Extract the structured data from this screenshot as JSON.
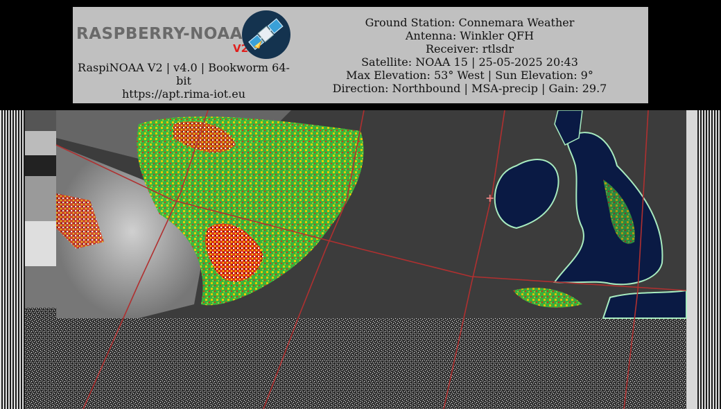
{
  "header": {
    "logo_text": "RASPBERRY-NOAA",
    "logo_version": "V2",
    "app_line_1": "RaspiNOAA V2 | v4.0 | Bookworm 64-",
    "app_line_2": "bit",
    "url": "https://apt.rima-iot.eu"
  },
  "pass_info": {
    "ground_station": "Ground Station: Connemara Weather",
    "antenna": "Antenna: Winkler QFH",
    "receiver": "Receiver: rtlsdr",
    "satellite": "Satellite: NOAA 15 | 25-05-2025 20:43",
    "elevation": "Max Elevation: 53° West | Sun Elevation: 9°",
    "direction": "Direction: Northbound | MSA-precip | Gain: 29.7"
  },
  "colors": {
    "banner_bg": "#c0c0c0",
    "ocean": "#0a1a44",
    "coastline": "#a8ecc0",
    "grid": "#b03030",
    "rain_red": "#d02010",
    "rain_yellow": "#f2d000",
    "rain_green": "#30c030"
  },
  "icons": [
    "raspberry-noaa-logo-icon",
    "satellite-icon"
  ]
}
